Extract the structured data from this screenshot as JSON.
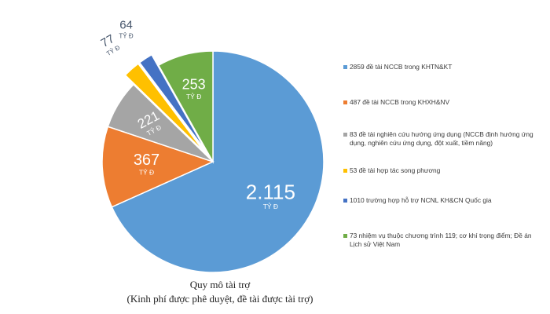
{
  "chart_data": {
    "type": "pie",
    "unit": "TỶ Đ",
    "title": "Quy mô tài trợ",
    "subtitle": "(Kinh phí được phê duyệt, đề tài được tài trợ)",
    "legend_position": "right",
    "slices": [
      {
        "label": "2859 đề tài NCCB trong KHTN&KT",
        "value": 2115,
        "value_label": "2.115",
        "color": "#5b9bd5",
        "explode": 0
      },
      {
        "label": "487 đề tài NCCB trong KHXH&NV",
        "value": 367,
        "value_label": "367",
        "color": "#ed7d31",
        "explode": 0
      },
      {
        "label": "83 đề tài nghiên cứu hướng ứng dụng (NCCB định hướng ứng dụng, nghiên cứu ứng dụng, đột xuất, tiềm năng)",
        "value": 221,
        "value_label": "221",
        "color": "#a5a5a5",
        "explode": 0
      },
      {
        "label": "53 đề tài hợp tác song phương",
        "value": 77,
        "value_label": "77",
        "color": "#ffc000",
        "explode": 1
      },
      {
        "label": "1010 trường hợp hỗ trợ NCNL KH&CN Quốc gia",
        "value": 64,
        "value_label": "64",
        "color": "#4472c4",
        "explode": 1
      },
      {
        "label": "73 nhiệm vụ thuộc chương trình 119; cơ khí trọng điểm; Đề án Lịch sử Việt Nam",
        "value": 253,
        "value_label": "253",
        "color": "#70ad47",
        "explode": 0
      }
    ]
  }
}
